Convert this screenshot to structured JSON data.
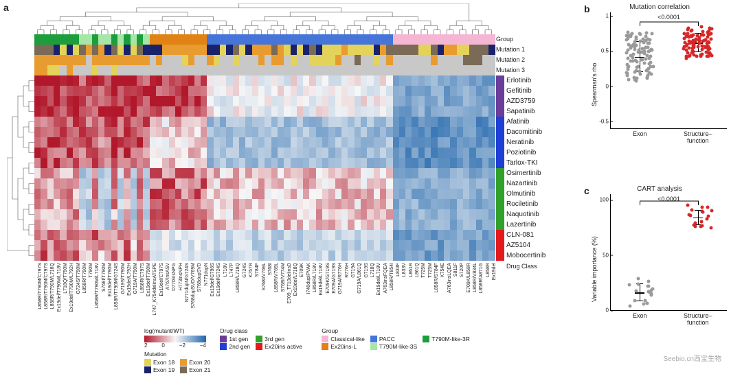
{
  "watermark": "Seebio.cn西宝生物",
  "palette": {
    "heatmap_max": "#b2182b",
    "heatmap_mid": "#f7f7f7",
    "heatmap_min": "#2166ac"
  },
  "panelA": {
    "label": "a",
    "drug_class_label": "Drug Class",
    "annot_labels": [
      "Group",
      "Mutation 1",
      "Mutation 2",
      "Mutation 3"
    ],
    "drugs": [
      {
        "name": "Erlotinib",
        "class": "1st"
      },
      {
        "name": "Gefitinib",
        "class": "1st"
      },
      {
        "name": "AZD3759",
        "class": "1st"
      },
      {
        "name": "Sapatinib",
        "class": "1st"
      },
      {
        "name": "Afatinib",
        "class": "2nd"
      },
      {
        "name": "Dacomitinib",
        "class": "2nd"
      },
      {
        "name": "Neratinib",
        "class": "2nd"
      },
      {
        "name": "Poziotinib",
        "class": "2nd"
      },
      {
        "name": "Tarlox-TKI",
        "class": "2nd"
      },
      {
        "name": "Osimertinib",
        "class": "3rd"
      },
      {
        "name": "Nazartinib",
        "class": "3rd"
      },
      {
        "name": "Olmutinib",
        "class": "3rd"
      },
      {
        "name": "Rociletinib",
        "class": "3rd"
      },
      {
        "name": "Naquotinib",
        "class": "3rd"
      },
      {
        "name": "Lazertinib",
        "class": "3rd"
      },
      {
        "name": "CLN-081",
        "class": "ex20"
      },
      {
        "name": "AZ5104",
        "class": "ex20"
      },
      {
        "name": "Mobocertinib",
        "class": "ex20"
      }
    ],
    "drug_class_colors": {
      "1st": "#6a3d9a",
      "2nd": "#1f3fd4",
      "3rd": "#33a02c",
      "ex20": "#e31a1c"
    },
    "columns": [
      {
        "l": "L858R/T790M/C797S",
        "g": "T3R",
        "m1": "E21",
        "m2": "E20",
        "m3": "E20"
      },
      {
        "l": "L858R/T790M/C797S",
        "g": "T3R",
        "m1": "E21",
        "m2": "E20",
        "m3": "E20"
      },
      {
        "l": "L858R/T790M/L718Q",
        "g": "T3R",
        "m1": "E21",
        "m2": "E20",
        "m3": "E18"
      },
      {
        "l": "Ex19del/T790M/L718V",
        "g": "T3R",
        "m1": "E19",
        "m2": "E20",
        "m3": "E18"
      },
      {
        "l": "L718Q/T790M",
        "g": "T3R",
        "m1": "E18",
        "m2": "E20",
        "m3": "na"
      },
      {
        "l": "Ex19del/T790M/L792H",
        "g": "T3R",
        "m1": "E19",
        "m2": "E20",
        "m3": "E20"
      },
      {
        "l": "G724S/T790M",
        "g": "T3R",
        "m1": "E18",
        "m2": "E20",
        "m3": "na"
      },
      {
        "l": "L858R/T790M",
        "g": "T3S",
        "m1": "E21",
        "m2": "E20",
        "m3": "na"
      },
      {
        "l": "T790M",
        "g": "T3S",
        "m1": "E20",
        "m2": "na",
        "m3": "na"
      },
      {
        "l": "L858R/T790M/L718V",
        "g": "T3R",
        "m1": "E21",
        "m2": "E20",
        "m3": "E18"
      },
      {
        "l": "S768I/T790M",
        "g": "T3S",
        "m1": "E20",
        "m2": "E20",
        "m3": "na"
      },
      {
        "l": "Ex19del/T790M",
        "g": "T3S",
        "m1": "E19",
        "m2": "E20",
        "m3": "na"
      },
      {
        "l": "L858R/T790M/G724S",
        "g": "T3R",
        "m1": "E21",
        "m2": "E20",
        "m3": "E18"
      },
      {
        "l": "G719S/T790M",
        "g": "T3S",
        "m1": "E18",
        "m2": "E20",
        "m3": "na"
      },
      {
        "l": "Ex19del/L792H",
        "g": "T3R",
        "m1": "E19",
        "m2": "E20",
        "m3": "na"
      },
      {
        "l": "G719A/T790M",
        "g": "T3S",
        "m1": "E18",
        "m2": "E20",
        "m3": "na"
      },
      {
        "l": "L858R/C797S",
        "g": "T3R",
        "m1": "E21",
        "m2": "E20",
        "m3": "na"
      },
      {
        "l": "Ex19del/T790M",
        "g": "T3S",
        "m1": "E19",
        "m2": "E20",
        "m3": "na"
      },
      {
        "l": "L747_K754delinsATSPE",
        "g": "EXL",
        "m1": "E19",
        "m2": "na",
        "m3": "na"
      },
      {
        "l": "Ex19del/C797S",
        "g": "EXL",
        "m1": "E19",
        "m2": "E20",
        "m3": "na"
      },
      {
        "l": "A767insASV",
        "g": "EXL",
        "m1": "E20",
        "m2": "na",
        "m3": "na"
      },
      {
        "l": "D770insNPG",
        "g": "EXL",
        "m1": "E20",
        "m2": "na",
        "m3": "na"
      },
      {
        "l": "H773insNPH",
        "g": "EXL",
        "m1": "E20",
        "m2": "na",
        "m3": "na"
      },
      {
        "l": "N771dupN/G724S",
        "g": "EXL",
        "m1": "E20",
        "m2": "E18",
        "m3": "na"
      },
      {
        "l": "S768dupSVD/V769M",
        "g": "EXL",
        "m1": "E20",
        "m2": "E20",
        "m3": "na"
      },
      {
        "l": "S768dupSVD",
        "g": "EXL",
        "m1": "E20",
        "m2": "na",
        "m3": "na"
      },
      {
        "l": "N771dupN",
        "g": "EXL",
        "m1": "E20",
        "m2": "na",
        "m3": "na"
      },
      {
        "l": "Ex19del/G796S",
        "g": "PA",
        "m1": "E19",
        "m2": "E20",
        "m3": "na"
      },
      {
        "l": "Ex19del/G724S",
        "g": "PA",
        "m1": "E19",
        "m2": "E18",
        "m3": "na"
      },
      {
        "l": "L718V",
        "g": "PA",
        "m1": "E18",
        "m2": "na",
        "m3": "na"
      },
      {
        "l": "L747P",
        "g": "PA",
        "m1": "E19",
        "m2": "na",
        "m3": "na"
      },
      {
        "l": "L858R/L718Q",
        "g": "PA",
        "m1": "E21",
        "m2": "E18",
        "m3": "na"
      },
      {
        "l": "G724S",
        "g": "PA",
        "m1": "E18",
        "m2": "na",
        "m3": "na"
      },
      {
        "l": "K757R",
        "g": "PA",
        "m1": "E19",
        "m2": "na",
        "m3": "na"
      },
      {
        "l": "S784F",
        "g": "PA",
        "m1": "E20",
        "m2": "na",
        "m3": "na"
      },
      {
        "l": "S768I/V769L",
        "g": "PA",
        "m1": "E20",
        "m2": "E20",
        "m3": "na"
      },
      {
        "l": "S768I",
        "g": "PA",
        "m1": "E20",
        "m2": "na",
        "m3": "na"
      },
      {
        "l": "L858R/V769L",
        "g": "PA",
        "m1": "E21",
        "m2": "E20",
        "m3": "na"
      },
      {
        "l": "S768I/V774M",
        "g": "PA",
        "m1": "E20",
        "m2": "E20",
        "m3": "na"
      },
      {
        "l": "E709_T710delinsD",
        "g": "PA",
        "m1": "E18",
        "m2": "na",
        "m3": "na"
      },
      {
        "l": "Ex19del/L718Q",
        "g": "PA",
        "m1": "E19",
        "m2": "E18",
        "m3": "na"
      },
      {
        "l": "E709K",
        "g": "PA",
        "m1": "E18",
        "m2": "na",
        "m3": "na"
      },
      {
        "l": "I740dupIPVAK",
        "g": "PA",
        "m1": "E19",
        "m2": "na",
        "m3": "na"
      },
      {
        "l": "L858R/L718V",
        "g": "PA",
        "m1": "E21",
        "m2": "E18",
        "m3": "na"
      },
      {
        "l": "Ex19del/L718V",
        "g": "PA",
        "m1": "E19",
        "m2": "E18",
        "m3": "na"
      },
      {
        "l": "E709K/G719S",
        "g": "PA",
        "m1": "E18",
        "m2": "E18",
        "m3": "na"
      },
      {
        "l": "E709A/G719S",
        "g": "PA",
        "m1": "E18",
        "m2": "E18",
        "m3": "na"
      },
      {
        "l": "G719A/R776H",
        "g": "PA",
        "m1": "E18",
        "m2": "E20",
        "m3": "na"
      },
      {
        "l": "R776H",
        "g": "PA",
        "m1": "E20",
        "m2": "na",
        "m3": "na"
      },
      {
        "l": "G719A",
        "g": "PA",
        "m1": "E18",
        "m2": "na",
        "m3": "na"
      },
      {
        "l": "G719A/L861Q",
        "g": "PA",
        "m1": "E18",
        "m2": "E21",
        "m3": "na"
      },
      {
        "l": "G719S",
        "g": "PA",
        "m1": "E18",
        "m2": "na",
        "m3": "na"
      },
      {
        "l": "L718Q",
        "g": "PA",
        "m1": "E18",
        "m2": "na",
        "m3": "na"
      },
      {
        "l": "Ex19del/L718V",
        "g": "PA",
        "m1": "E19",
        "m2": "E18",
        "m3": "na"
      },
      {
        "l": "A763insFQEA",
        "g": "PA",
        "m1": "E20",
        "m2": "na",
        "m3": "na"
      },
      {
        "l": "L858R/T854I",
        "g": "PA",
        "m1": "E21",
        "m2": "E20",
        "m3": "na"
      },
      {
        "l": "L833F",
        "g": "CL",
        "m1": "E21",
        "m2": "na",
        "m3": "na"
      },
      {
        "l": "L833V",
        "g": "CL",
        "m1": "E21",
        "m2": "na",
        "m3": "na"
      },
      {
        "l": "L861R",
        "g": "CL",
        "m1": "E21",
        "m2": "na",
        "m3": "na"
      },
      {
        "l": "L861Q",
        "g": "CL",
        "m1": "E21",
        "m2": "na",
        "m3": "na"
      },
      {
        "l": "T725M",
        "g": "CL",
        "m1": "E18",
        "m2": "na",
        "m3": "na"
      },
      {
        "l": "T725M",
        "g": "CL",
        "m1": "E18",
        "m2": "na",
        "m3": "na"
      },
      {
        "l": "L858R/S784F",
        "g": "CL",
        "m1": "E21",
        "m2": "E20",
        "m3": "na"
      },
      {
        "l": "K754E",
        "g": "CL",
        "m1": "E19",
        "m2": "na",
        "m3": "na"
      },
      {
        "l": "A763insLQEA",
        "g": "CL",
        "m1": "E20",
        "m2": "na",
        "m3": "na"
      },
      {
        "l": "S811F",
        "g": "CL",
        "m1": "E20",
        "m2": "na",
        "m3": "na"
      },
      {
        "l": "S720P",
        "g": "CL",
        "m1": "E18",
        "m2": "na",
        "m3": "na"
      },
      {
        "l": "E709K/L858R",
        "g": "CL",
        "m1": "E18",
        "m2": "E21",
        "m3": "na"
      },
      {
        "l": "L858R/V834L",
        "g": "CL",
        "m1": "E21",
        "m2": "E21",
        "m3": "na"
      },
      {
        "l": "L858R/A871G",
        "g": "CL",
        "m1": "E21",
        "m2": "E21",
        "m3": "na"
      },
      {
        "l": "L858R",
        "g": "CL",
        "m1": "E21",
        "m2": "na",
        "m3": "na"
      },
      {
        "l": "Ex19del",
        "g": "CL",
        "m1": "E19",
        "m2": "na",
        "m3": "na"
      }
    ],
    "group_colors": {
      "CL": "#f4b6d2",
      "EXL": "#e08214",
      "T3S": "#a6e6a6",
      "T3R": "#1b9e3b",
      "PA": "#4575d8"
    },
    "mutation_colors": {
      "E18": "#e4d35a",
      "E19": "#18236b",
      "E20": "#e89c2f",
      "E21": "#7a6a56",
      "na": "#c8c8c8"
    },
    "colorbar": {
      "label": "log(mutant/WT)",
      "ticks": [
        "2",
        "0",
        "−2",
        "−4"
      ]
    },
    "legends": {
      "drug_class": {
        "title": "Drug class",
        "items": [
          {
            "c": "#6a3d9a",
            "t": "1st gen"
          },
          {
            "c": "#1f3fd4",
            "t": "2nd gen"
          },
          {
            "c": "#33a02c",
            "t": "3rd gen"
          },
          {
            "c": "#e31a1c",
            "t": "Ex20ins active"
          }
        ]
      },
      "group": {
        "title": "Group",
        "items": [
          {
            "c": "#f4b6d2",
            "t": "Classical-like"
          },
          {
            "c": "#e08214",
            "t": "Ex20ins-L"
          },
          {
            "c": "#4575d8",
            "t": "PACC"
          },
          {
            "c": "#a6e6a6",
            "t": "T790M-like-3S"
          },
          {
            "c": "#1b9e3b",
            "t": "T790M-like-3R"
          }
        ]
      },
      "mutation": {
        "title": "Mutation",
        "items": [
          {
            "c": "#e4d35a",
            "t": "Exon 18"
          },
          {
            "c": "#18236b",
            "t": "Exon 19"
          },
          {
            "c": "#e89c2f",
            "t": "Exon 20"
          },
          {
            "c": "#7a6a56",
            "t": "Exon 21"
          }
        ]
      }
    }
  },
  "panelB": {
    "label": "b",
    "title": "Mutation correlation",
    "ylabel": "Spearman's rho",
    "pval": "<0.0001",
    "ylim": [
      -0.6,
      1.05
    ],
    "yticks": [
      -0.5,
      0,
      0.5,
      1.0
    ],
    "cats": [
      {
        "name": "Exon",
        "color": "#9a9a9a",
        "mean": 0.42,
        "sd": 0.22,
        "n": 95,
        "seed": 11
      },
      {
        "name": "Structure–\nfunction",
        "color": "#d62728",
        "mean": 0.62,
        "sd": 0.14,
        "n": 95,
        "seed": 23
      }
    ]
  },
  "panelC": {
    "label": "c",
    "title": "CART analysis",
    "ylabel": "Variable importance (%)",
    "pval": "<0.0001",
    "ylim": [
      0,
      105
    ],
    "yticks": [
      0,
      50,
      100
    ],
    "cats": [
      {
        "name": "Exon",
        "color": "#9a9a9a",
        "mean": 16,
        "sd": 8,
        "n": 18,
        "seed": 5
      },
      {
        "name": "Structure–\nfunction",
        "color": "#d62728",
        "mean": 84,
        "sd": 7,
        "n": 18,
        "seed": 9
      }
    ]
  }
}
